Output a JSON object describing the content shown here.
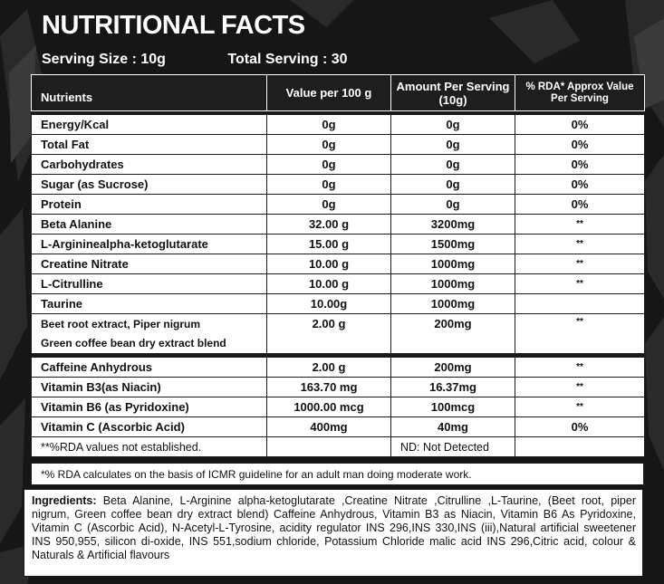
{
  "title": "NUTRITIONAL FACTS",
  "serving_size": "Serving Size : 10g",
  "total_serving": "Total Serving : 30",
  "headers": {
    "nutrients": "Nutrients",
    "per100": "Value per 100 g",
    "per_serving": "Amount Per Serving (10g)",
    "rda": "% RDA* Approx Value Per Serving"
  },
  "rows": [
    {
      "name": "Energy/Kcal",
      "per100": "0g",
      "serving": "0g",
      "rda": "0%"
    },
    {
      "name": "Total Fat",
      "per100": "0g",
      "serving": "0g",
      "rda": "0%"
    },
    {
      "name": "Carbohydrates",
      "per100": "0g",
      "serving": "0g",
      "rda": "0%"
    },
    {
      "name": "Sugar (as Sucrose)",
      "per100": "0g",
      "serving": "0g",
      "rda": "0%"
    },
    {
      "name": "Protein",
      "per100": "0g",
      "serving": "0g",
      "rda": "0%"
    },
    {
      "name": "Beta Alanine",
      "per100": "32.00 g",
      "serving": "3200mg",
      "rda": "**"
    },
    {
      "name": "L-Argininealpha-ketoglutarate",
      "per100": "15.00 g",
      "serving": "1500mg",
      "rda": "**"
    },
    {
      "name": "Creatine Nitrate",
      "per100": "10.00 g",
      "serving": "1000mg",
      "rda": "**"
    },
    {
      "name": "L-Citrulline",
      "per100": "10.00 g",
      "serving": "1000mg",
      "rda": "**"
    },
    {
      "name": "Taurine",
      "per100": "10.00g",
      "serving": "1000mg",
      "rda": ""
    },
    {
      "name": "Beet root extract, Piper nigrum",
      "name2": "Green coffee bean dry extract blend",
      "per100": "2.00 g",
      "serving": "200mg",
      "rda": "**"
    },
    {
      "name": "Caffeine Anhydrous",
      "per100": "2.00 g",
      "serving": "200mg",
      "rda": "**"
    },
    {
      "name": "Vitamin B3(as Niacin)",
      "per100": "163.70 mg",
      "serving": "16.37mg",
      "rda": "**"
    },
    {
      "name": "Vitamin B6 (as Pyridoxine)",
      "per100": "1000.00 mcg",
      "serving": "100mcg",
      "rda": "**"
    },
    {
      "name": "Vitamin C (Ascorbic Acid)",
      "per100": "400mg",
      "serving": "40mg",
      "rda": "0%"
    }
  ],
  "footer_row": {
    "left": "**%RDA values not established.",
    "nd": "ND: Not Detected"
  },
  "rda_note": "*% RDA calculates on the basis of ICMR guideline for an adult man doing moderate work.",
  "ingredients_label": "Ingredients:",
  "ingredients_text": " Beta  Alanine, L-Arginine alpha-ketoglutarate ,Creatine Nitrate ,Citrulline ,L-Taurine, (Beet root, piper nigrum, Green coffee bean dry extract blend) Caffeine Anhydrous, Vitamin B3 as Niacin, Vitamin B6 As Pyridoxine, Vitamin C (Ascorbic Acid), N-Acetyl-L-Tyrosine, acidity regulator INS 296,INS 330,INS (iii),Natural artificial sweetener INS 950,955, silicon di-oxide, INS 551,sodium chloride, Potassium Chloride malic acid INS 296,Citric acid, colour & Naturals & Artificial flavours"
}
